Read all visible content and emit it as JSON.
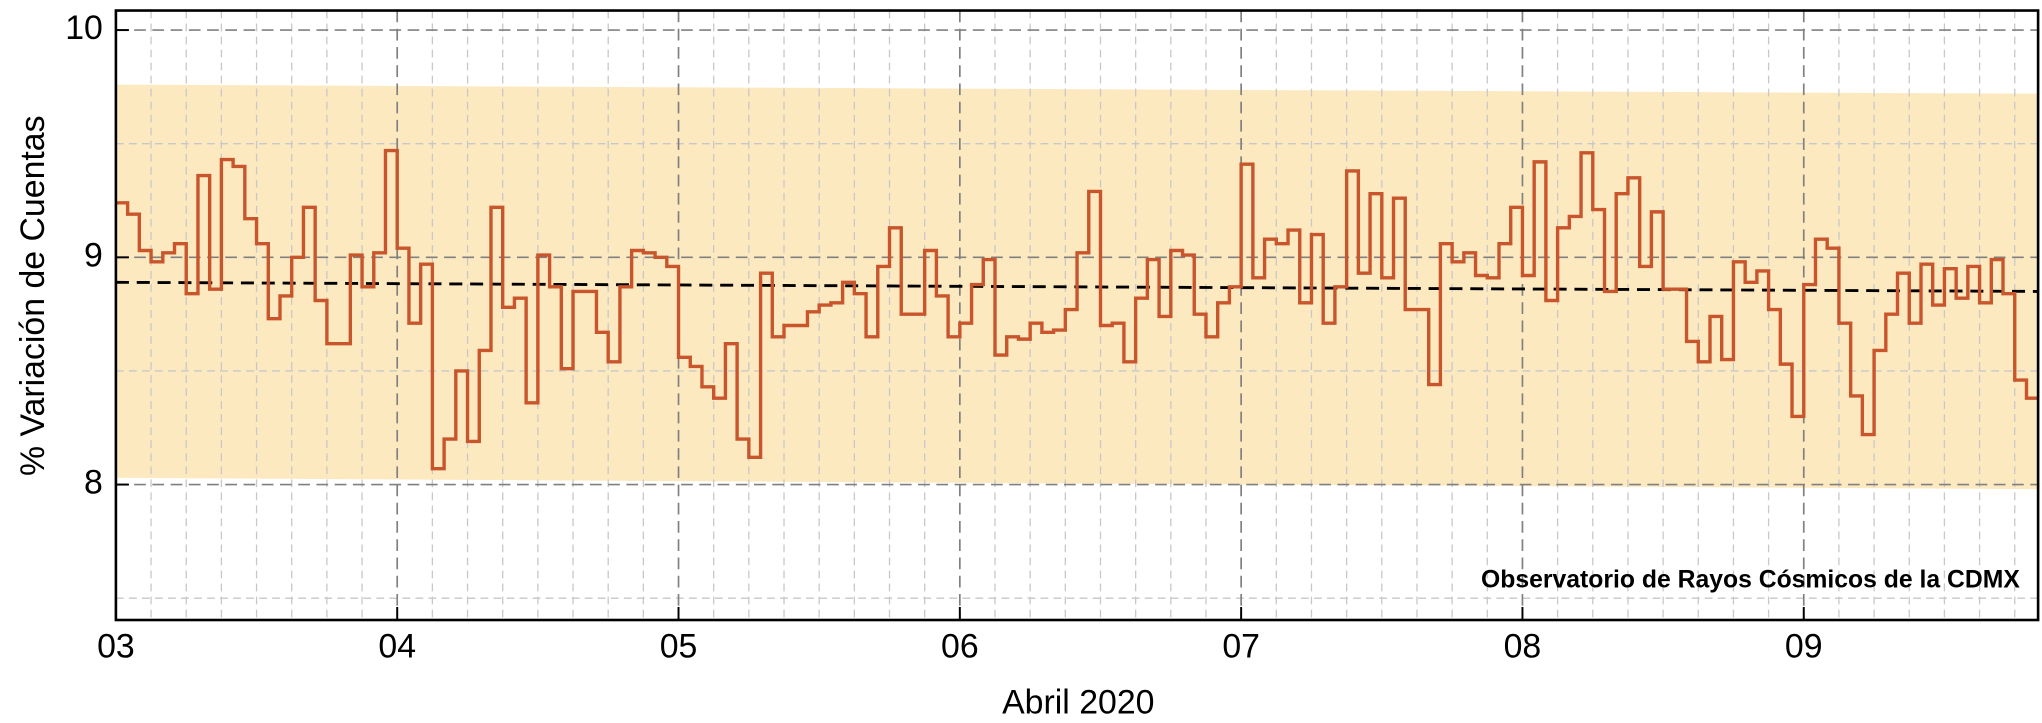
{
  "chart_data": {
    "type": "step",
    "x_label": "Abril 2020",
    "y_label": "% Variación de Cuentas",
    "annotation": "Observatorio de Rayos Cósmicos de la CDMX",
    "xlim": [
      3,
      9.833
    ],
    "ylim": [
      7.404,
      10.086
    ],
    "xticks": [
      {
        "value": 3,
        "label": "03"
      },
      {
        "value": 4,
        "label": "04"
      },
      {
        "value": 5,
        "label": "05"
      },
      {
        "value": 6,
        "label": "06"
      },
      {
        "value": 7,
        "label": "07"
      },
      {
        "value": 8,
        "label": "08"
      },
      {
        "value": 9,
        "label": "09"
      }
    ],
    "yticks": [
      8,
      9,
      10
    ],
    "xminor": [
      3.125,
      3.25,
      3.375,
      3.5,
      3.625,
      3.75,
      3.875,
      4.125,
      4.25,
      4.375,
      4.5,
      4.625,
      4.75,
      4.875,
      5.125,
      5.25,
      5.375,
      5.5,
      5.625,
      5.75,
      5.875,
      6.125,
      6.25,
      6.375,
      6.5,
      6.625,
      6.75,
      6.875,
      7.125,
      7.25,
      7.375,
      7.5,
      7.625,
      7.75,
      7.875,
      8.125,
      8.25,
      8.375,
      8.5,
      8.625,
      8.75,
      8.875,
      9.125,
      9.25,
      9.375,
      9.5,
      9.625,
      9.75
    ],
    "yminor": [
      7.5,
      8.5,
      9.5
    ],
    "grid": true,
    "band": {
      "color": "#fde9c0",
      "x": [
        3,
        9.833
      ],
      "upper": [
        9.76,
        9.72
      ],
      "lower": [
        8.03,
        7.98
      ]
    },
    "mean_line": {
      "color": "#000000",
      "x": [
        3,
        9.833
      ],
      "values": [
        8.89,
        8.85
      ]
    },
    "series": [
      {
        "color": "#c8552b",
        "x": [
          3,
          3.0417,
          3.0833,
          3.125,
          3.1667,
          3.2083,
          3.25,
          3.2917,
          3.3333,
          3.375,
          3.4167,
          3.4583,
          3.5,
          3.5417,
          3.5833,
          3.625,
          3.6667,
          3.7083,
          3.75,
          3.7917,
          3.8333,
          3.875,
          3.9167,
          3.9583,
          4,
          4.0417,
          4.0833,
          4.125,
          4.1667,
          4.2083,
          4.25,
          4.2917,
          4.3333,
          4.375,
          4.4167,
          4.4583,
          4.5,
          4.5417,
          4.5833,
          4.625,
          4.6667,
          4.7083,
          4.75,
          4.7917,
          4.8333,
          4.875,
          4.9167,
          4.9583,
          5,
          5.0417,
          5.0833,
          5.125,
          5.1667,
          5.2083,
          5.25,
          5.2917,
          5.3333,
          5.375,
          5.4167,
          5.4583,
          5.5,
          5.5417,
          5.5833,
          5.625,
          5.6667,
          5.7083,
          5.75,
          5.7917,
          5.8333,
          5.875,
          5.9167,
          5.9583,
          6,
          6.0417,
          6.0833,
          6.125,
          6.1667,
          6.2083,
          6.25,
          6.2917,
          6.3333,
          6.375,
          6.4167,
          6.4583,
          6.5,
          6.5417,
          6.5833,
          6.625,
          6.6667,
          6.7083,
          6.75,
          6.7917,
          6.8333,
          6.875,
          6.9167,
          6.9583,
          7,
          7.0417,
          7.0833,
          7.125,
          7.1667,
          7.2083,
          7.25,
          7.2917,
          7.3333,
          7.375,
          7.4167,
          7.4583,
          7.5,
          7.5417,
          7.5833,
          7.625,
          7.6667,
          7.7083,
          7.75,
          7.7917,
          7.8333,
          7.875,
          7.9167,
          7.9583,
          8,
          8.0417,
          8.0833,
          8.125,
          8.1667,
          8.2083,
          8.25,
          8.2917,
          8.3333,
          8.375,
          8.4167,
          8.4583,
          8.5,
          8.5417,
          8.5833,
          8.625,
          8.6667,
          8.7083,
          8.75,
          8.7917,
          8.8333,
          8.875,
          8.9167,
          8.9583,
          9,
          9.0417,
          9.0833,
          9.125,
          9.1667,
          9.2083,
          9.25,
          9.2917,
          9.3333,
          9.375,
          9.4167,
          9.4583,
          9.5,
          9.5417,
          9.5833,
          9.625,
          9.6667,
          9.7083,
          9.75,
          9.7917
        ],
        "values": [
          9.24,
          9.19,
          9.03,
          8.98,
          9.02,
          9.06,
          8.84,
          9.36,
          8.86,
          9.43,
          9.4,
          9.17,
          9.06,
          8.73,
          8.83,
          9.0,
          9.22,
          8.81,
          8.62,
          8.62,
          9.01,
          8.87,
          9.02,
          9.47,
          9.04,
          8.71,
          8.97,
          8.07,
          8.2,
          8.5,
          8.19,
          8.59,
          9.22,
          8.78,
          8.82,
          8.36,
          9.01,
          8.87,
          8.51,
          8.85,
          8.85,
          8.67,
          8.54,
          8.87,
          9.03,
          9.02,
          9.0,
          8.96,
          8.56,
          8.52,
          8.43,
          8.38,
          8.62,
          8.2,
          8.12,
          8.93,
          8.65,
          8.7,
          8.7,
          8.76,
          8.79,
          8.8,
          8.89,
          8.84,
          8.65,
          8.96,
          9.13,
          8.75,
          8.75,
          9.03,
          8.83,
          8.65,
          8.71,
          8.88,
          8.99,
          8.57,
          8.65,
          8.64,
          8.71,
          8.67,
          8.68,
          8.77,
          9.02,
          9.29,
          8.7,
          8.71,
          8.54,
          8.82,
          8.99,
          8.74,
          9.03,
          9.01,
          8.75,
          8.65,
          8.8,
          8.87,
          9.41,
          8.91,
          9.08,
          9.06,
          9.12,
          8.8,
          9.1,
          8.71,
          8.87,
          9.38,
          8.93,
          9.28,
          8.91,
          9.26,
          8.77,
          8.77,
          8.44,
          9.06,
          8.98,
          9.02,
          8.92,
          8.91,
          9.06,
          9.22,
          8.92,
          9.42,
          8.81,
          9.13,
          9.18,
          9.46,
          9.21,
          8.85,
          9.28,
          9.35,
          8.96,
          9.2,
          8.86,
          8.86,
          8.63,
          8.54,
          8.74,
          8.55,
          8.98,
          8.89,
          8.94,
          8.77,
          8.53,
          8.3,
          8.88,
          9.08,
          9.04,
          8.71,
          8.39,
          8.22,
          8.59,
          8.75,
          8.93,
          8.71,
          8.97,
          8.79,
          8.95,
          8.82,
          8.96,
          8.8,
          8.99,
          8.84,
          8.46,
          8.38
        ]
      }
    ]
  }
}
